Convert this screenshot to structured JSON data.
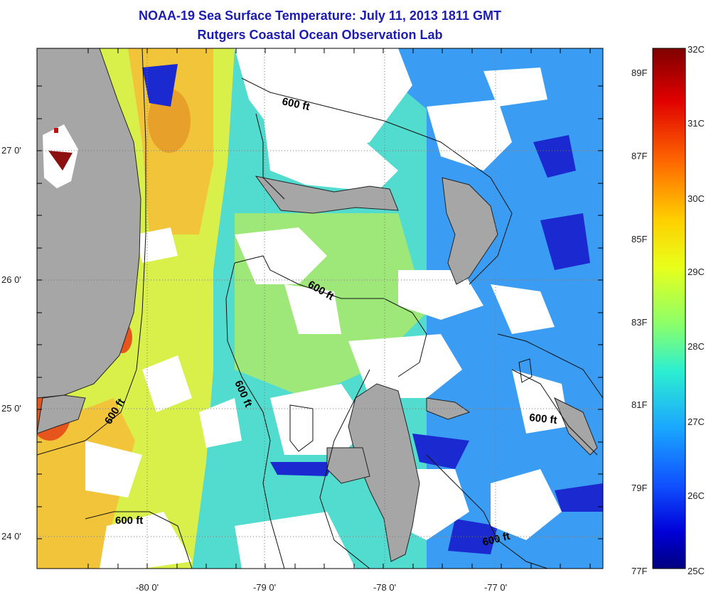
{
  "title": {
    "line1": "NOAA-19 Sea Surface Temperature:  July 11, 2013 1811 GMT",
    "line2": "Rutgers Coastal Ocean Observation Lab"
  },
  "axes": {
    "x_ticks": [
      "-80 0'",
      "-79 0'",
      "-78 0'",
      "-77 0'"
    ],
    "y_ticks": [
      "27 0'",
      "26 0'",
      "25 0'",
      "24 0'"
    ]
  },
  "contours": {
    "label": "600 ft"
  },
  "colorbar": {
    "celsius": [
      "32C",
      "31C",
      "30C",
      "29C",
      "28C",
      "27C",
      "26C",
      "25C"
    ],
    "fahrenheit": [
      "89F",
      "87F",
      "85F",
      "83F",
      "81F",
      "79F",
      "77F"
    ],
    "colors": [
      "#7f0000",
      "#e00000",
      "#ff6a00",
      "#ffd000",
      "#e8ff1a",
      "#8cff6a",
      "#2cefd0",
      "#1aa6ff",
      "#1050ff",
      "#0000d8",
      "#00007f"
    ]
  },
  "palette": {
    "land": "#a6a6a6",
    "cloud": "#ffffff",
    "warm_stream": "#f2c43a",
    "gulf_yellow": "#d9f04a",
    "green": "#9ee87a",
    "cyan": "#52dccf",
    "blue": "#3a9cf2",
    "deep_blue": "#1a2ad0",
    "hot_spot": "#e6561c",
    "dark_red": "#8c1010",
    "title_color": "#1c1cb4"
  }
}
